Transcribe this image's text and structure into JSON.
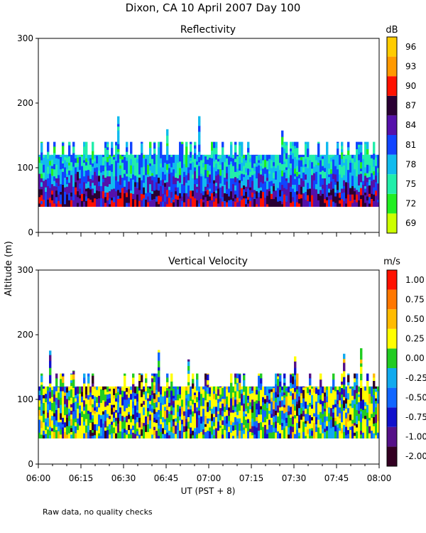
{
  "figure": {
    "title": "Dixon, CA 10 April 2007  Day 100",
    "shared_ylabel": "Altitude (m)",
    "footnote": "Raw data, no quality checks"
  },
  "chart_data": [
    {
      "type": "heatmap",
      "title": "Reflectivity",
      "xlabel": "",
      "ylabel": "Altitude (m)",
      "xlim": [
        "06:00",
        "08:00"
      ],
      "ylim": [
        0,
        300
      ],
      "yticks": [
        0,
        100,
        200,
        300
      ],
      "xticks": [
        "06:00",
        "06:15",
        "06:30",
        "06:45",
        "07:00",
        "07:15",
        "07:30",
        "07:45",
        "08:00"
      ],
      "colorbar": {
        "label": "dB",
        "levels": [
          69,
          72,
          75,
          78,
          81,
          84,
          87,
          90,
          93,
          96
        ],
        "colors": [
          "#ccff00",
          "#22ee22",
          "#22eeaa",
          "#11bbee",
          "#1144ff",
          "#5511aa",
          "#2a0033",
          "#ff1100",
          "#ff9900",
          "#ffcc00"
        ]
      },
      "description_layers": {
        "data_bottom_m": 40,
        "main_top_m": 120,
        "max_spike_m": 180
      }
    },
    {
      "type": "heatmap",
      "title": "Vertical Velocity",
      "xlabel": "UT  (PST + 8)",
      "ylabel": "Altitude (m)",
      "xlim": [
        "06:00",
        "08:00"
      ],
      "ylim": [
        0,
        300
      ],
      "yticks": [
        0,
        100,
        200,
        300
      ],
      "xticks": [
        "06:00",
        "06:15",
        "06:30",
        "06:45",
        "07:00",
        "07:15",
        "07:30",
        "07:45",
        "08:00"
      ],
      "colorbar": {
        "label": "m/s",
        "levels": [
          "-2.00",
          "-1.00",
          "-0.75",
          "-0.50",
          "-0.25",
          "0.00",
          "0.25",
          "0.50",
          "0.75",
          "1.00"
        ],
        "colors": [
          "#330022",
          "#551188",
          "#1111cc",
          "#1166ff",
          "#11aaee",
          "#22cc22",
          "#ffff00",
          "#ffbb00",
          "#ff7700",
          "#ff1100"
        ]
      },
      "description_layers": {
        "data_bottom_m": 40,
        "main_top_m": 120,
        "max_spike_m": 180
      }
    }
  ]
}
